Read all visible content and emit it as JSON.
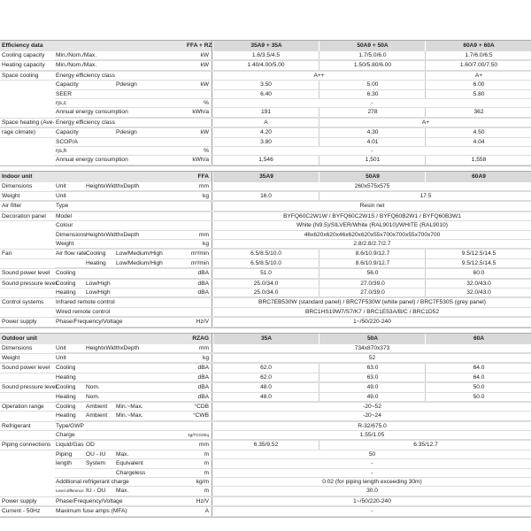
{
  "sections": [
    {
      "header": {
        "l": "Efficiency data",
        "u": "FFA + RZAG",
        "v": [
          {
            "t": "35A9 + 35A",
            "s": 1
          },
          {
            "t": "50A9 + 50A",
            "s": 1
          },
          {
            "t": "60A9 + 60A",
            "s": 1
          }
        ]
      },
      "rows": [
        {
          "l": "Cooling capacity",
          "a": "Min./Nom./Max.",
          "u": "kW",
          "v": [
            {
              "t": "1.6/3.5/4.5",
              "s": 1
            },
            {
              "t": "1.7/5.0/6.0",
              "s": 1
            },
            {
              "t": "1.7/6.0/6.5",
              "s": 1
            }
          ]
        },
        {
          "l": "Heating capacity",
          "a": "Min./Nom./Max.",
          "u": "kW",
          "v": [
            {
              "t": "1.40/4.00/5.00",
              "s": 1
            },
            {
              "t": "1.50/5.80/6.00",
              "s": 1
            },
            {
              "t": "1.60/7.00/7.50",
              "s": 1
            }
          ]
        },
        {
          "l": "Space cooling",
          "a": "Energy efficiency class",
          "u": "",
          "v": [
            {
              "t": "A++",
              "s": 2
            },
            {
              "t": "A+",
              "s": 1
            }
          ]
        },
        {
          "l": "",
          "a": "Capacity",
          "c": "Pdesign",
          "u": "kW",
          "v": [
            {
              "t": "3.50",
              "s": 1
            },
            {
              "t": "5.00",
              "s": 1
            },
            {
              "t": "6.00",
              "s": 1
            }
          ]
        },
        {
          "l": "",
          "a": "SEER",
          "u": "",
          "v": [
            {
              "t": "6.40",
              "s": 1
            },
            {
              "t": "6.30",
              "s": 1
            },
            {
              "t": "5.80",
              "s": 1
            }
          ]
        },
        {
          "l": "",
          "a": "ηs,c",
          "u": "%",
          "v": [
            {
              "t": "-",
              "s": 3
            }
          ]
        },
        {
          "l": "",
          "a": "Annual energy consumption",
          "u": "kWh/a",
          "v": [
            {
              "t": "191",
              "s": 1
            },
            {
              "t": "278",
              "s": 1
            },
            {
              "t": "362",
              "s": 1
            }
          ]
        },
        {
          "l": "Space heating (Ave-",
          "a": "Energy efficiency class",
          "u": "",
          "v": [
            {
              "t": "A",
              "s": 1
            },
            {
              "t": "A+",
              "s": 2
            }
          ]
        },
        {
          "l": "rage climate)",
          "a": "Capacity",
          "c": "Pdesign",
          "u": "kW",
          "v": [
            {
              "t": "4.20",
              "s": 1
            },
            {
              "t": "4.30",
              "s": 1
            },
            {
              "t": "4.50",
              "s": 1
            }
          ]
        },
        {
          "l": "",
          "a": "SCOP/A",
          "u": "",
          "v": [
            {
              "t": "3.80",
              "s": 1
            },
            {
              "t": "4.01",
              "s": 1
            },
            {
              "t": "4.04",
              "s": 1
            }
          ]
        },
        {
          "l": "",
          "a": "ηs,h",
          "u": "%",
          "v": [
            {
              "t": "-",
              "s": 3
            }
          ]
        },
        {
          "l": "",
          "a": "Annual energy consumption",
          "u": "kWh/a",
          "v": [
            {
              "t": "1,546",
              "s": 1
            },
            {
              "t": "1,501",
              "s": 1
            },
            {
              "t": "1,558",
              "s": 1
            }
          ]
        }
      ]
    },
    {
      "header": {
        "l": "Indoor unit",
        "u": "FFA",
        "v": [
          {
            "t": "35A9",
            "s": 1
          },
          {
            "t": "50A9",
            "s": 1
          },
          {
            "t": "60A9",
            "s": 1
          }
        ]
      },
      "rows": [
        {
          "l": "Dimensions",
          "a": "Unit",
          "b": "HeightxWidthxDepth",
          "u": "mm",
          "v": [
            {
              "t": "260x575x575",
              "s": 3
            }
          ]
        },
        {
          "l": "Weight",
          "a": "Unit",
          "u": "kg",
          "v": [
            {
              "t": "16.0",
              "s": 1
            },
            {
              "t": "17.5",
              "s": 2
            }
          ]
        },
        {
          "l": "Air filter",
          "a": "Type",
          "u": "",
          "v": [
            {
              "t": "Resin net",
              "s": 3
            }
          ]
        },
        {
          "l": "Decoration panel",
          "a": "Model",
          "u": "",
          "v": [
            {
              "t": "BYFQ60C2W1W / BYFQ60C2W1S / BYFQ60B2W1 / BYFQ60B3W1",
              "s": 3
            }
          ]
        },
        {
          "l": "",
          "a": "Colour",
          "u": "",
          "v": [
            {
              "t": "White (N9.5)/SILVER/White (RAL9010)/WHITE (RAL9010)",
              "s": 3
            }
          ]
        },
        {
          "l": "",
          "a": "Dimensions",
          "b": "HeightxWidthxDepth",
          "u": "mm",
          "v": [
            {
              "t": "46x620x620x46x620x620x55x700x700x55x700x700",
              "s": 3
            }
          ]
        },
        {
          "l": "",
          "a": "Weight",
          "u": "kg",
          "v": [
            {
              "t": "2.8/2.8/2.7/2.7",
              "s": 3
            }
          ]
        },
        {
          "l": "Fan",
          "a": "Air flow rate",
          "b": "Cooling",
          "c": "Low/Medium/High",
          "u": "m³/min",
          "v": [
            {
              "t": "6.5/8.5/10.0",
              "s": 1
            },
            {
              "t": "8.6/10.9/12.7",
              "s": 1
            },
            {
              "t": "9.5/12.5/14.5",
              "s": 1
            }
          ]
        },
        {
          "l": "",
          "b": "Heating",
          "c": "Low/Medium/High",
          "u": "m³/min",
          "v": [
            {
              "t": "6.5/8.5/10.0",
              "s": 1
            },
            {
              "t": "8.6/10.9/12.7",
              "s": 1
            },
            {
              "t": "9.5/12.5/14.5",
              "s": 1
            }
          ]
        },
        {
          "l": "Sound power level",
          "a": "Cooling",
          "u": "dBA",
          "v": [
            {
              "t": "51.0",
              "s": 1
            },
            {
              "t": "56.0",
              "s": 1
            },
            {
              "t": "60.0",
              "s": 1
            }
          ]
        },
        {
          "l": "Sound pressure level",
          "a": "Cooling",
          "b": "Low/High",
          "u": "dBA",
          "v": [
            {
              "t": "25.0/34.0",
              "s": 1
            },
            {
              "t": "27.0/39.0",
              "s": 1
            },
            {
              "t": "32.0/43.0",
              "s": 1
            }
          ]
        },
        {
          "l": "",
          "a": "Heating",
          "b": "Low/High",
          "u": "dBA",
          "v": [
            {
              "t": "25.0/34.0",
              "s": 1
            },
            {
              "t": "27.0/39.0",
              "s": 1
            },
            {
              "t": "32.0/43.0",
              "s": 1
            }
          ]
        },
        {
          "l": "Control systems",
          "a": "Infrared remote control",
          "u": "",
          "v": [
            {
              "t": "BRC7EB530W (standard panel) / BRC7F530W (white panel) / BRC7F530S (grey panel)",
              "s": 3
            }
          ]
        },
        {
          "l": "",
          "a": "Wired remote control",
          "u": "",
          "v": [
            {
              "t": "BRC1HS19W7/S7/K7 / BRC1E53A/B/C / BRC1D52",
              "s": 3
            }
          ]
        },
        {
          "l": "Power supply",
          "a": "Phase/Frequency/Voltage",
          "u": "Hz/V",
          "v": [
            {
              "t": "1~/50/220-240",
              "s": 3
            }
          ]
        }
      ]
    },
    {
      "header": {
        "l": "Outdoor unit",
        "u": "RZAG",
        "v": [
          {
            "t": "35A",
            "s": 1
          },
          {
            "t": "50A",
            "s": 1
          },
          {
            "t": "60A",
            "s": 1
          }
        ]
      },
      "rows": [
        {
          "l": "Dimensions",
          "a": "Unit",
          "b": "HeightxWidthxDepth",
          "u": "mm",
          "v": [
            {
              "t": "734x870x373",
              "s": 3
            }
          ]
        },
        {
          "l": "Weight",
          "a": "Unit",
          "u": "kg",
          "v": [
            {
              "t": "52",
              "s": 3
            }
          ]
        },
        {
          "l": "Sound power level",
          "a": "Cooling",
          "u": "dBA",
          "v": [
            {
              "t": "62.0",
              "s": 1
            },
            {
              "t": "63.0",
              "s": 1
            },
            {
              "t": "64.0",
              "s": 1
            }
          ]
        },
        {
          "l": "",
          "a": "Heating",
          "u": "dBA",
          "v": [
            {
              "t": "62.0",
              "s": 1
            },
            {
              "t": "63.0",
              "s": 1
            },
            {
              "t": "64.0",
              "s": 1
            }
          ]
        },
        {
          "l": "Sound pressure level",
          "a": "Cooling",
          "b": "Nom.",
          "u": "dBA",
          "v": [
            {
              "t": "48.0",
              "s": 1
            },
            {
              "t": "49.0",
              "s": 1
            },
            {
              "t": "50.0",
              "s": 1
            }
          ]
        },
        {
          "l": "",
          "a": "Heating",
          "b": "Nom.",
          "u": "dBA",
          "v": [
            {
              "t": "48.0",
              "s": 1
            },
            {
              "t": "49.0",
              "s": 1
            },
            {
              "t": "50.0",
              "s": 1
            }
          ]
        },
        {
          "l": "Operation range",
          "a": "Cooling",
          "b": "Ambient",
          "c": "Min.~Max.",
          "u": "°CDB",
          "v": [
            {
              "t": "-20~52",
              "s": 3
            }
          ]
        },
        {
          "l": "",
          "a": "Heating",
          "b": "Ambient",
          "c": "Min.~Max.",
          "u": "°CWB",
          "v": [
            {
              "t": "-20~24",
              "s": 3
            }
          ]
        },
        {
          "l": "Refrigerant",
          "a": "Type/GWP",
          "u": "",
          "v": [
            {
              "t": "R-32/675.0",
              "s": 3
            }
          ]
        },
        {
          "l": "",
          "a": "Charge",
          "u": "kg/TCO2Eq",
          "v": [
            {
              "t": "1.55/1.05",
              "s": 3
            }
          ]
        },
        {
          "l": "Piping connections",
          "a": "Liquid/Gas",
          "b": "OD",
          "u": "mm",
          "v": [
            {
              "t": "6.35/9.52",
              "s": 1
            },
            {
              "t": "6.35/12.7",
              "s": 2
            }
          ]
        },
        {
          "l": "",
          "a": "Piping",
          "b": "OU - IU",
          "c": "Max.",
          "u": "m",
          "v": [
            {
              "t": "50",
              "s": 3
            }
          ]
        },
        {
          "l": "",
          "a": "length",
          "b": "System",
          "c": "Equivalent",
          "u": "m",
          "v": [
            {
              "t": "-",
              "s": 3
            }
          ]
        },
        {
          "l": "",
          "c": "Chargeless",
          "u": "m",
          "v": [
            {
              "t": "-",
              "s": 3
            }
          ]
        },
        {
          "l": "",
          "a": "Additional refrigerant charge",
          "u": "kg/m",
          "v": [
            {
              "t": "0.02 (for piping length exceeding 30m)",
              "s": 3
            }
          ]
        },
        {
          "l": "",
          "a": "Level difference",
          "b": "IU - OU",
          "c": "Max.",
          "u": "m",
          "v": [
            {
              "t": "30.0",
              "s": 3
            }
          ]
        },
        {
          "l": "Power supply",
          "a": "Phase/Frequency/Voltage",
          "u": "Hz/V",
          "v": [
            {
              "t": "1~/50/220-240",
              "s": 3
            }
          ]
        },
        {
          "l": "Current - 50Hz",
          "a": "Maximum fuse amps (MFA)",
          "u": "A",
          "v": [
            {
              "t": "-",
              "s": 3
            }
          ]
        }
      ]
    }
  ]
}
